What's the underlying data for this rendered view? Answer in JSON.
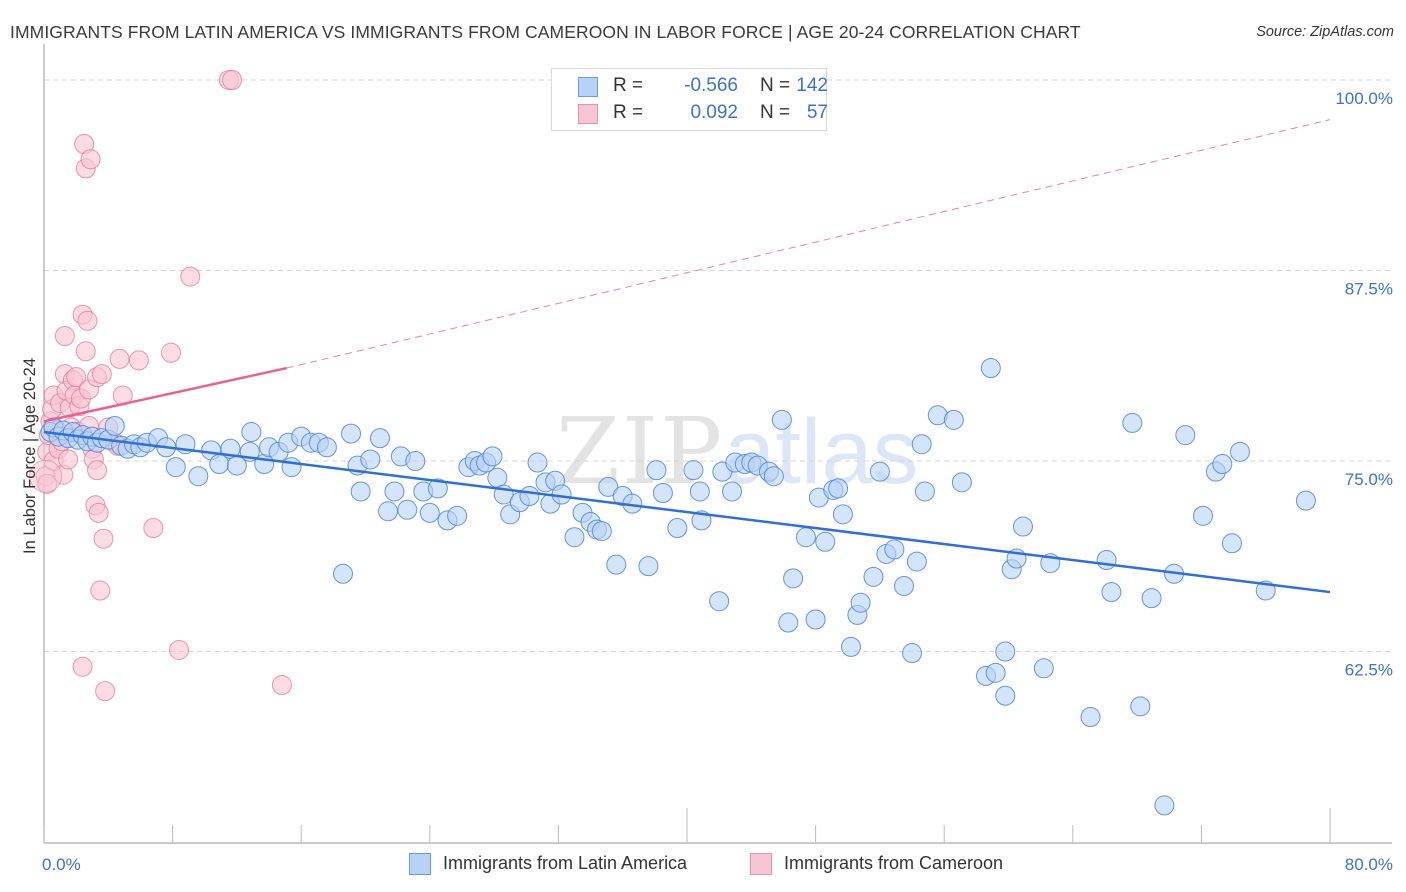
{
  "header": {
    "title": "IMMIGRANTS FROM LATIN AMERICA VS IMMIGRANTS FROM CAMEROON IN LABOR FORCE | AGE 20-24 CORRELATION CHART",
    "source": "Source: ZipAtlas.com"
  },
  "watermark": {
    "zip": "ZIP",
    "atlas": "atlas"
  },
  "legend": {
    "rows": [
      {
        "r_label": "R =",
        "r_value": "-0.566",
        "n_label": "N =",
        "n_value": "142"
      },
      {
        "r_label": "R =",
        "r_value": "0.092",
        "n_label": "N =",
        "n_value": "57"
      }
    ]
  },
  "bottom_legend": [
    {
      "label": "Immigrants from Latin America"
    },
    {
      "label": "Immigrants from Cameroon"
    }
  ],
  "colors": {
    "series1_fill": "#b8d2f5",
    "series1_stroke": "#4a86dd",
    "series1_line": "#2f6fd6",
    "series2_fill": "#f9c4d4",
    "series2_stroke": "#e87a9e",
    "series2_line": "#e5638e",
    "tick_text": "#3b72cc",
    "grid": "#d5d5d5"
  },
  "chart_data": {
    "type": "scatter",
    "title": "IMMIGRANTS FROM LATIN AMERICA VS IMMIGRANTS FROM CAMEROON IN LABOR FORCE | AGE 20-24 CORRELATION CHART",
    "xlabel": "",
    "ylabel": "In Labor Force | Age 20-24",
    "xlim": [
      0,
      80
    ],
    "ylim": [
      50,
      102
    ],
    "x_tick_labels": [
      "0.0%",
      "80.0%"
    ],
    "y_ticks": [
      62.5,
      75.0,
      87.5,
      100.0
    ],
    "y_tick_labels": [
      "62.5%",
      "75.0%",
      "87.5%",
      "100.0%"
    ],
    "grid": true,
    "legend_position": "top-center",
    "series": [
      {
        "name": "Immigrants from Latin America",
        "R": -0.566,
        "N": 142,
        "trend": {
          "x": [
            0,
            80
          ],
          "y": [
            76.9,
            66.4
          ]
        },
        "points": [
          [
            0.4,
            76.9
          ],
          [
            0.6,
            77.2
          ],
          [
            0.9,
            76.6
          ],
          [
            1.2,
            77.0
          ],
          [
            1.5,
            76.5
          ],
          [
            1.8,
            76.9
          ],
          [
            2.1,
            76.4
          ],
          [
            2.4,
            76.7
          ],
          [
            2.7,
            76.3
          ],
          [
            3.0,
            76.6
          ],
          [
            3.3,
            76.2
          ],
          [
            3.6,
            76.5
          ],
          [
            4.0,
            76.4
          ],
          [
            4.4,
            77.3
          ],
          [
            4.8,
            76.0
          ],
          [
            5.2,
            75.8
          ],
          [
            5.6,
            76.1
          ],
          [
            6.0,
            75.9
          ],
          [
            6.4,
            76.2
          ],
          [
            7.1,
            76.5
          ],
          [
            7.6,
            75.9
          ],
          [
            8.2,
            74.6
          ],
          [
            8.8,
            76.1
          ],
          [
            9.6,
            74.0
          ],
          [
            10.4,
            75.7
          ],
          [
            10.9,
            74.8
          ],
          [
            11.6,
            75.8
          ],
          [
            12.0,
            74.7
          ],
          [
            12.8,
            75.6
          ],
          [
            12.9,
            76.9
          ],
          [
            13.7,
            74.8
          ],
          [
            14.0,
            75.9
          ],
          [
            14.6,
            75.6
          ],
          [
            15.2,
            76.2
          ],
          [
            15.4,
            74.6
          ],
          [
            16.0,
            76.6
          ],
          [
            16.6,
            76.2
          ],
          [
            17.1,
            76.2
          ],
          [
            17.6,
            75.9
          ],
          [
            18.6,
            67.6
          ],
          [
            19.1,
            76.8
          ],
          [
            19.5,
            74.7
          ],
          [
            19.7,
            73.0
          ],
          [
            20.3,
            75.1
          ],
          [
            20.9,
            76.5
          ],
          [
            21.4,
            71.7
          ],
          [
            21.8,
            73.0
          ],
          [
            22.2,
            75.3
          ],
          [
            22.6,
            71.8
          ],
          [
            23.1,
            75.0
          ],
          [
            23.6,
            73.0
          ],
          [
            24.0,
            71.6
          ],
          [
            24.5,
            73.2
          ],
          [
            25.1,
            71.1
          ],
          [
            25.7,
            71.4
          ],
          [
            26.4,
            74.6
          ],
          [
            26.8,
            75.0
          ],
          [
            27.1,
            74.7
          ],
          [
            27.5,
            74.9
          ],
          [
            27.9,
            75.3
          ],
          [
            28.2,
            73.9
          ],
          [
            28.6,
            72.8
          ],
          [
            29.0,
            71.5
          ],
          [
            29.6,
            72.3
          ],
          [
            30.2,
            72.7
          ],
          [
            30.7,
            74.9
          ],
          [
            31.2,
            73.6
          ],
          [
            31.5,
            72.2
          ],
          [
            31.8,
            73.7
          ],
          [
            32.2,
            72.8
          ],
          [
            33.0,
            70.0
          ],
          [
            33.5,
            71.6
          ],
          [
            34.0,
            71.0
          ],
          [
            34.4,
            70.5
          ],
          [
            34.7,
            70.4
          ],
          [
            35.1,
            73.3
          ],
          [
            35.6,
            68.2
          ],
          [
            36.0,
            72.7
          ],
          [
            36.6,
            72.2
          ],
          [
            37.6,
            68.1
          ],
          [
            38.1,
            74.4
          ],
          [
            38.5,
            72.9
          ],
          [
            39.4,
            70.6
          ],
          [
            40.4,
            74.4
          ],
          [
            40.8,
            73.0
          ],
          [
            40.9,
            71.1
          ],
          [
            42.0,
            65.8
          ],
          [
            42.2,
            74.3
          ],
          [
            42.8,
            73.0
          ],
          [
            43.0,
            74.9
          ],
          [
            43.6,
            74.8
          ],
          [
            44.0,
            74.9
          ],
          [
            44.4,
            74.7
          ],
          [
            45.1,
            74.3
          ],
          [
            45.4,
            74.0
          ],
          [
            45.9,
            77.7
          ],
          [
            46.3,
            64.4
          ],
          [
            46.6,
            67.3
          ],
          [
            47.4,
            70.0
          ],
          [
            48.0,
            64.6
          ],
          [
            48.2,
            72.6
          ],
          [
            48.6,
            69.7
          ],
          [
            49.1,
            73.1
          ],
          [
            49.4,
            73.2
          ],
          [
            49.7,
            71.5
          ],
          [
            50.2,
            62.8
          ],
          [
            50.6,
            64.9
          ],
          [
            50.8,
            65.7
          ],
          [
            51.6,
            67.4
          ],
          [
            52.0,
            74.3
          ],
          [
            52.4,
            68.9
          ],
          [
            52.9,
            69.2
          ],
          [
            53.5,
            66.8
          ],
          [
            54.0,
            62.4
          ],
          [
            54.3,
            68.4
          ],
          [
            54.6,
            76.1
          ],
          [
            54.8,
            73.0
          ],
          [
            55.6,
            78.0
          ],
          [
            56.6,
            77.7
          ],
          [
            57.1,
            73.6
          ],
          [
            58.6,
            60.9
          ],
          [
            58.9,
            81.1
          ],
          [
            59.2,
            61.1
          ],
          [
            59.8,
            62.5
          ],
          [
            59.8,
            59.6
          ],
          [
            60.2,
            67.9
          ],
          [
            60.5,
            68.6
          ],
          [
            60.9,
            70.7
          ],
          [
            62.2,
            61.4
          ],
          [
            62.6,
            68.3
          ],
          [
            65.1,
            58.2
          ],
          [
            66.1,
            68.5
          ],
          [
            66.4,
            66.4
          ],
          [
            67.7,
            77.5
          ],
          [
            68.2,
            58.9
          ],
          [
            68.9,
            66.0
          ],
          [
            69.7,
            52.4
          ],
          [
            70.3,
            67.6
          ],
          [
            71.0,
            76.7
          ],
          [
            72.1,
            71.4
          ],
          [
            72.9,
            74.3
          ],
          [
            73.3,
            74.8
          ],
          [
            73.9,
            69.6
          ],
          [
            74.4,
            75.6
          ],
          [
            78.5,
            72.4
          ],
          [
            76.0,
            66.5
          ]
        ]
      },
      {
        "name": "Immigrants from Cameroon",
        "R": 0.092,
        "N": 57,
        "trend": {
          "x": [
            0,
            15.1,
            80
          ],
          "y": [
            77.6,
            81.1,
            97.4
          ],
          "solid_until_x": 15.1
        },
        "points": [
          [
            0.1,
            74.0
          ],
          [
            0.2,
            75.6
          ],
          [
            0.3,
            76.7
          ],
          [
            0.4,
            77.6
          ],
          [
            0.5,
            78.4
          ],
          [
            0.6,
            79.3
          ],
          [
            0.6,
            75.0
          ],
          [
            0.8,
            77.0
          ],
          [
            0.9,
            75.8
          ],
          [
            1.0,
            78.8
          ],
          [
            1.1,
            76.3
          ],
          [
            1.2,
            74.1
          ],
          [
            1.3,
            80.7
          ],
          [
            1.3,
            83.2
          ],
          [
            1.4,
            79.6
          ],
          [
            1.5,
            75.1
          ],
          [
            1.6,
            78.5
          ],
          [
            1.7,
            77.2
          ],
          [
            1.8,
            80.3
          ],
          [
            1.9,
            79.3
          ],
          [
            2.0,
            80.5
          ],
          [
            2.1,
            76.9
          ],
          [
            2.2,
            78.6
          ],
          [
            2.3,
            79.1
          ],
          [
            2.4,
            84.6
          ],
          [
            2.4,
            61.5
          ],
          [
            2.5,
            95.8
          ],
          [
            2.6,
            82.2
          ],
          [
            2.6,
            94.2
          ],
          [
            2.7,
            84.2
          ],
          [
            2.8,
            79.7
          ],
          [
            2.8,
            77.3
          ],
          [
            2.9,
            94.8
          ],
          [
            3.0,
            75.8
          ],
          [
            3.1,
            75.1
          ],
          [
            3.2,
            72.1
          ],
          [
            3.3,
            80.5
          ],
          [
            3.3,
            74.4
          ],
          [
            3.4,
            71.6
          ],
          [
            3.5,
            66.5
          ],
          [
            3.6,
            80.7
          ],
          [
            3.7,
            69.9
          ],
          [
            3.8,
            59.9
          ],
          [
            4.0,
            77.2
          ],
          [
            4.4,
            76.2
          ],
          [
            4.6,
            76.0
          ],
          [
            4.7,
            81.7
          ],
          [
            4.9,
            79.3
          ],
          [
            5.9,
            81.6
          ],
          [
            6.8,
            70.6
          ],
          [
            7.9,
            82.1
          ],
          [
            8.4,
            62.6
          ],
          [
            9.1,
            87.1
          ],
          [
            11.5,
            100.0
          ],
          [
            11.7,
            100.0
          ],
          [
            14.8,
            60.3
          ],
          [
            0.2,
            73.5
          ]
        ]
      }
    ]
  }
}
